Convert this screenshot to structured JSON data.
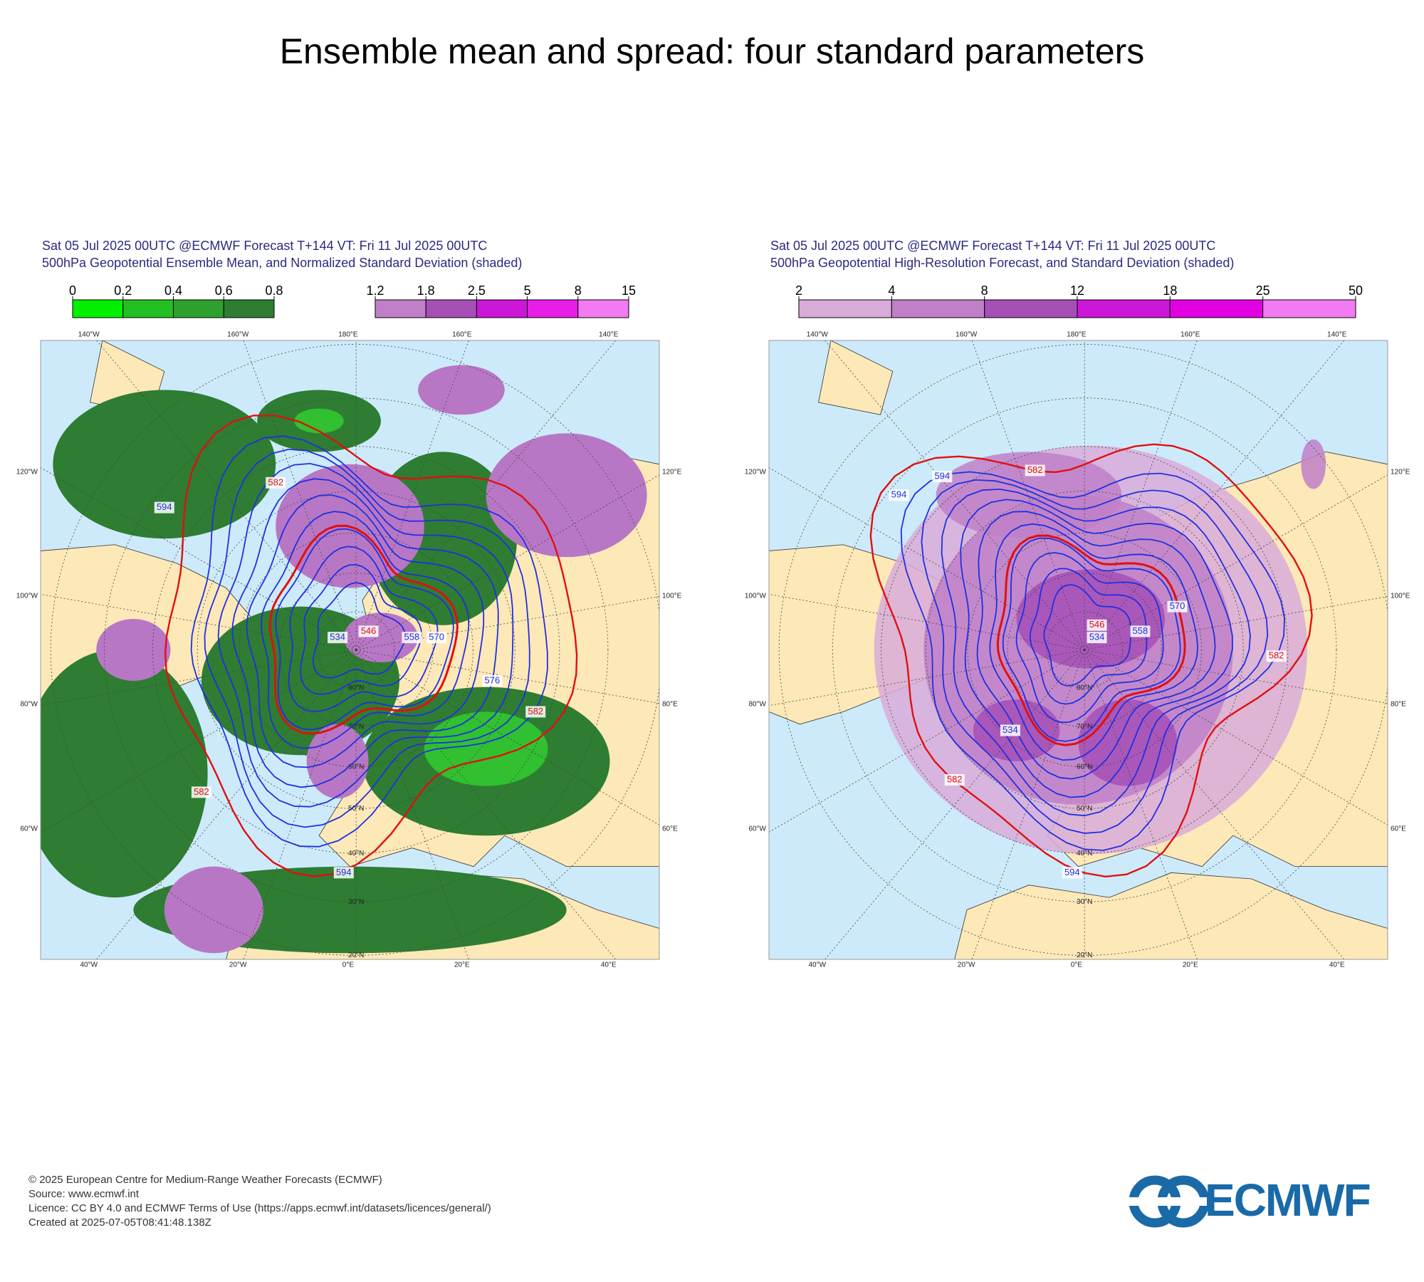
{
  "title": "Ensemble mean and spread: four standard parameters",
  "panels": [
    {
      "title_lines": [
        "Sat 05 Jul 2025 00UTC @ECMWF Forecast T+144 VT: Fri 11 Jul 2025 00UTC",
        "500hPa Geopotential Ensemble Mean, and Normalized Standard Deviation (shaded)"
      ],
      "colorbars": [
        {
          "ticks": [
            0,
            0.2,
            0.4,
            0.6,
            0.8
          ],
          "colors": [
            "#00f000",
            "#22c022",
            "#2ea02e",
            "#2e7d32"
          ]
        },
        {
          "ticks": [
            1.2,
            1.8,
            2.5,
            5,
            8,
            15
          ],
          "colors": [
            "#c080c8",
            "#a64fb7",
            "#cc16d8",
            "#e81ee8",
            "#f27af2"
          ]
        }
      ],
      "shading": "ensemble",
      "lon_labels_top": [
        "140°W",
        "160°W",
        "180°E",
        "160°E",
        "140°E"
      ],
      "lon_labels_left": [
        "120°W",
        "100°W",
        "80°W",
        "60°W"
      ],
      "lon_labels_right": [
        "120°E",
        "100°E",
        "80°E",
        "60°E"
      ],
      "lon_labels_bottom": [
        "40°W",
        "20°W",
        "0°E",
        "20°E",
        "40°E"
      ],
      "lat_labels": [
        {
          "value": 80,
          "label": "80°N"
        },
        {
          "value": 70,
          "label": "70°N"
        },
        {
          "value": 60,
          "label": "60°N"
        },
        {
          "value": 50,
          "label": "50°N"
        },
        {
          "value": 40,
          "label": "40°N"
        },
        {
          "value": 30,
          "label": "30°N"
        },
        {
          "value": 20,
          "label": "20°N"
        }
      ],
      "contour_labels": [
        "582",
        "594",
        "534",
        "546",
        "558",
        "570",
        "576",
        "582",
        "594",
        "582"
      ]
    },
    {
      "title_lines": [
        "Sat 05 Jul 2025 00UTC @ECMWF Forecast T+144 VT: Fri 11 Jul 2025 00UTC",
        "500hPa Geopotential High-Resolution Forecast, and Standard Deviation (shaded)"
      ],
      "colorbars": [
        {
          "ticks": [
            2,
            4,
            8,
            12,
            18,
            25,
            50
          ],
          "colors": [
            "#d8acd8",
            "#c080c8",
            "#a64fb7",
            "#cc16d8",
            "#e200e2",
            "#f27af2"
          ]
        }
      ],
      "shading": "spread",
      "lon_labels_top": [
        "140°W",
        "160°W",
        "180°E",
        "160°E",
        "140°E"
      ],
      "lon_labels_left": [
        "120°W",
        "100°W",
        "80°W",
        "60°W"
      ],
      "lon_labels_right": [
        "120°E",
        "100°E",
        "80°E",
        "60°E"
      ],
      "lon_labels_bottom": [
        "40°W",
        "20°W",
        "0°E",
        "20°E",
        "40°E"
      ],
      "lat_labels": [
        {
          "value": 80,
          "label": "80°N"
        },
        {
          "value": 70,
          "label": "70°N"
        },
        {
          "value": 60,
          "label": "60°N"
        },
        {
          "value": 50,
          "label": "50°N"
        },
        {
          "value": 40,
          "label": "40°N"
        },
        {
          "value": 30,
          "label": "30°N"
        },
        {
          "value": 20,
          "label": "20°N"
        }
      ],
      "contour_labels": [
        "582",
        "594",
        "546",
        "534",
        "558",
        "570",
        "582",
        "582",
        "594",
        "534",
        "594"
      ]
    }
  ],
  "footer": [
    "© 2025 European Centre for Medium-Range Weather Forecasts (ECMWF)",
    "Source: www.ecmwf.int",
    "Licence: CC BY 4.0 and ECMWF Terms of Use (https://apps.ecmwf.int/datasets/licences/general/)",
    "Created at 2025-07-05T08:41:48.138Z"
  ],
  "logo": "ECMWF"
}
